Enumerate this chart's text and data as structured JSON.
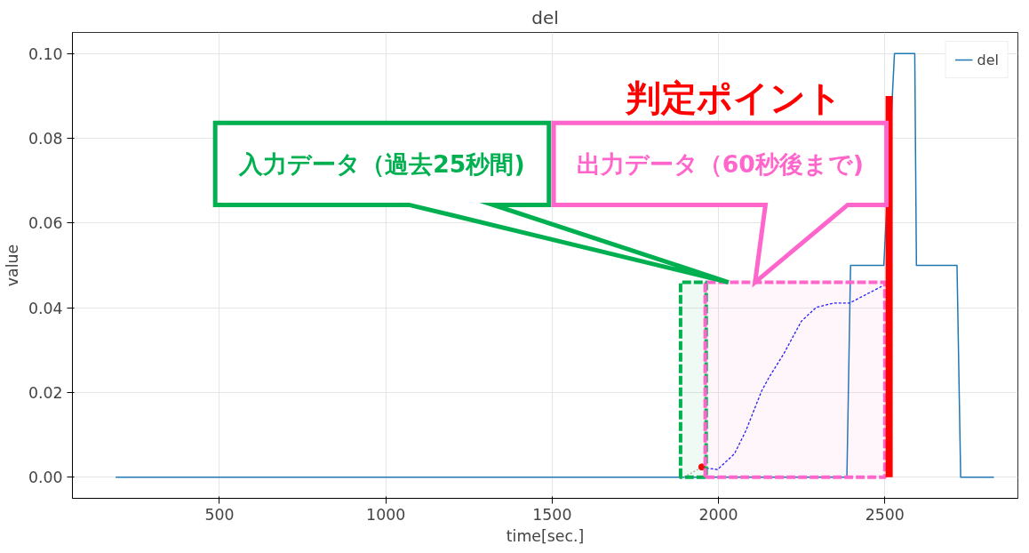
{
  "chart_data": {
    "type": "line",
    "title": "del",
    "xlabel": "time[sec.]",
    "ylabel": "value",
    "xlim": [
      58,
      2900
    ],
    "ylim": [
      -0.005,
      0.105
    ],
    "xticks": [
      500,
      1000,
      1500,
      2000,
      2500
    ],
    "yticks": [
      {
        "value": 0,
        "label": "0.00"
      },
      {
        "value": 0.02,
        "label": "0.02"
      },
      {
        "value": 0.04,
        "label": "0.04"
      },
      {
        "value": 0.06,
        "label": "0.06"
      },
      {
        "value": 0.08,
        "label": "0.08"
      },
      {
        "value": 0.1,
        "label": "0.10"
      }
    ],
    "grid": true,
    "legend": "top right",
    "series": [
      {
        "name": "del",
        "color": "#1f77b4",
        "line_style": "solid",
        "x": [
          188,
          2386,
          2397,
          2497,
          2529,
          2590,
          2595,
          2717,
          2728,
          2828
        ],
        "values": [
          0,
          0,
          0.05,
          0.05,
          0.1,
          0.1,
          0.05,
          0.05,
          0,
          0
        ]
      },
      {
        "color": "#1a1aff",
        "line_style": "dashed",
        "x": [
          1950,
          1958,
          1997,
          2048,
          2082,
          2130,
          2153,
          2196,
          2249,
          2294,
          2347,
          2394,
          2497
        ],
        "values": [
          0.0024,
          0.0022,
          0.0018,
          0.0055,
          0.0109,
          0.0204,
          0.0237,
          0.0291,
          0.0368,
          0.0401,
          0.0411,
          0.0411,
          0.0453
        ]
      },
      {
        "color": "#aaaaaa",
        "line_style": "dotted",
        "x": [
          1897,
          1950
        ],
        "values": [
          0,
          0.0024
        ]
      },
      {
        "type": "scatter",
        "color": "#ff0000",
        "marker": "circle",
        "x": [
          1950
        ],
        "values": [
          0.0024
        ]
      },
      {
        "type": "area",
        "color": "#00b050",
        "line_style": "dashed",
        "x": [
          1886,
          1963
        ],
        "values": [
          0.046,
          0.046
        ]
      },
      {
        "type": "area",
        "color": "#ff66cc",
        "line_style": "dashed",
        "x": [
          1960,
          2500
        ],
        "values": [
          0.046,
          0.046
        ]
      },
      {
        "type": "bar",
        "color": "#ff0000",
        "x": [
          2513
        ],
        "values": [
          0.09
        ]
      }
    ],
    "annotations": [
      "入力データ（過去25秒間)",
      "出力データ（60秒後まで)",
      "判定ポイント"
    ]
  }
}
